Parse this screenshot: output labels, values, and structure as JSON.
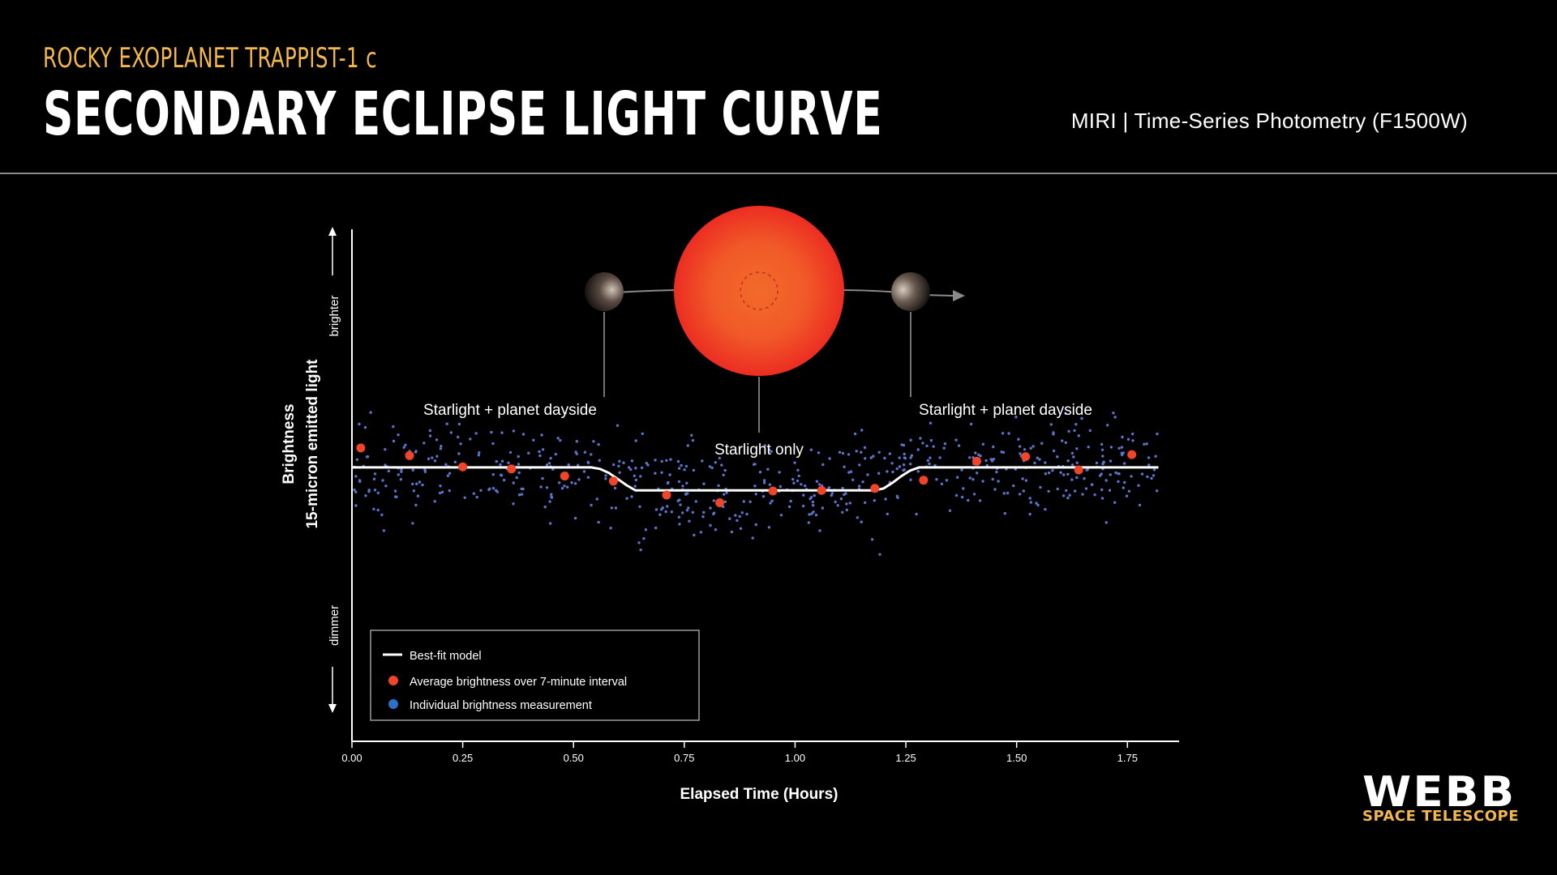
{
  "header": {
    "supertitle": "ROCKY EXOPLANET TRAPPIST-1 c",
    "title": "SECONDARY ECLIPSE LIGHT CURVE",
    "instrument": "MIRI | Time-Series Photometry (F1500W)"
  },
  "branding": {
    "logo": "WEBB",
    "logo_sub": "SPACE TELESCOPE"
  },
  "colors": {
    "accent_gold": "#f2b84b",
    "average_point": "#f0452a",
    "individual_point": "#5b73c9",
    "model_line": "#ffffff",
    "star_center": "#f26a2a",
    "star_edge": "#ec2d22"
  },
  "chart_data": {
    "type": "scatter",
    "xlabel": "Elapsed Time (Hours)",
    "ylabel": "Brightness",
    "ylabel_sub": "15-micron emitted light",
    "y_top_label": "brighter",
    "y_bottom_label": "dimmer",
    "xlim": [
      0,
      1.83
    ],
    "ylim": [
      0,
      1
    ],
    "xticks": [
      0.0,
      0.25,
      0.5,
      0.75,
      1.0,
      1.25,
      1.5,
      1.75
    ],
    "xtick_labels": [
      "0.00",
      "0.25",
      "0.50",
      "0.75",
      "1.00",
      "1.25",
      "1.50",
      "1.75"
    ],
    "grid": false,
    "legend_position": "bottom-left",
    "legend": {
      "model": "Best-fit model",
      "average": "Average brightness over 7-minute interval",
      "individual": "Individual brightness measurement"
    },
    "annotations": {
      "pre_eclipse": "Starlight + planet dayside",
      "in_eclipse": "Starlight only",
      "post_eclipse": "Starlight + planet dayside"
    },
    "model": {
      "x": [
        0.0,
        0.54,
        0.56,
        0.58,
        0.6,
        0.62,
        0.64,
        1.18,
        1.2,
        1.22,
        1.24,
        1.26,
        1.28,
        1.82
      ],
      "y": [
        0.535,
        0.535,
        0.532,
        0.524,
        0.512,
        0.5,
        0.49,
        0.49,
        0.494,
        0.505,
        0.518,
        0.529,
        0.535,
        0.535
      ]
    },
    "series": [
      {
        "name": "Average brightness over 7-minute interval",
        "x": [
          0.02,
          0.13,
          0.25,
          0.36,
          0.48,
          0.59,
          0.71,
          0.83,
          0.95,
          1.06,
          1.18,
          1.29,
          1.41,
          1.52,
          1.64,
          1.76
        ],
        "y": [
          0.573,
          0.558,
          0.536,
          0.532,
          0.518,
          0.508,
          0.481,
          0.466,
          0.489,
          0.49,
          0.494,
          0.51,
          0.547,
          0.556,
          0.53,
          0.56
        ]
      }
    ]
  }
}
